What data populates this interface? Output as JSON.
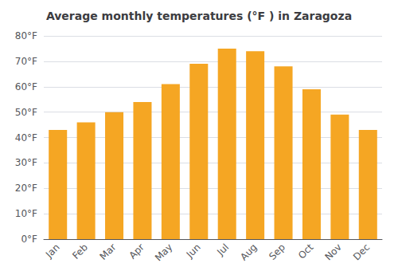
{
  "chart_data": {
    "type": "bar",
    "title": "Average monthly temperatures (°F ) in Zaragoza",
    "categories": [
      "Jan",
      "Feb",
      "Mar",
      "Apr",
      "May",
      "Jun",
      "Jul",
      "Aug",
      "Sep",
      "Oct",
      "Nov",
      "Dec"
    ],
    "values": [
      43,
      46,
      50,
      54,
      61,
      69,
      75,
      74,
      68,
      59,
      49,
      43
    ],
    "color": "#F5A623",
    "ylim": [
      0,
      80
    ],
    "yticks": [
      {
        "value": 0,
        "label": "0°F"
      },
      {
        "value": 10,
        "label": "10°F"
      },
      {
        "value": 20,
        "label": "20°F"
      },
      {
        "value": 30,
        "label": "30°F"
      },
      {
        "value": 40,
        "label": "40°F"
      },
      {
        "value": 50,
        "label": "50°F"
      },
      {
        "value": 60,
        "label": "60°F"
      },
      {
        "value": 70,
        "label": "70°F"
      },
      {
        "value": 80,
        "label": "80°F"
      }
    ],
    "grid": true
  }
}
